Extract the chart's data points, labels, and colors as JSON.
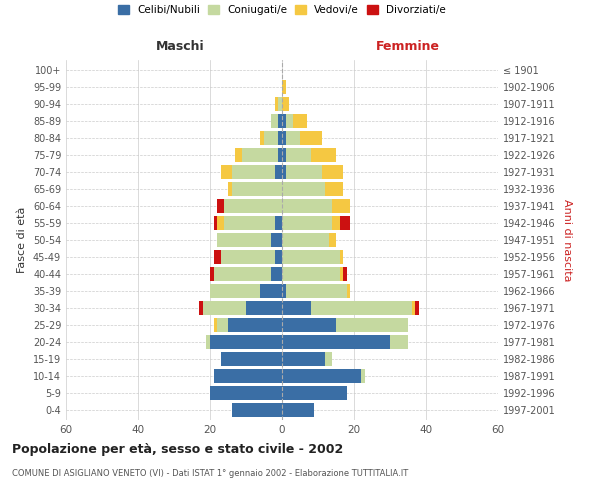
{
  "age_groups": [
    "0-4",
    "5-9",
    "10-14",
    "15-19",
    "20-24",
    "25-29",
    "30-34",
    "35-39",
    "40-44",
    "45-49",
    "50-54",
    "55-59",
    "60-64",
    "65-69",
    "70-74",
    "75-79",
    "80-84",
    "85-89",
    "90-94",
    "95-99",
    "100+"
  ],
  "birth_years": [
    "1997-2001",
    "1992-1996",
    "1987-1991",
    "1982-1986",
    "1977-1981",
    "1972-1976",
    "1967-1971",
    "1962-1966",
    "1957-1961",
    "1952-1956",
    "1947-1951",
    "1942-1946",
    "1937-1941",
    "1932-1936",
    "1927-1931",
    "1922-1926",
    "1917-1921",
    "1912-1916",
    "1907-1911",
    "1902-1906",
    "≤ 1901"
  ],
  "maschi_celibi": [
    14,
    20,
    19,
    17,
    20,
    15,
    10,
    6,
    3,
    2,
    3,
    2,
    0,
    0,
    2,
    1,
    1,
    1,
    0,
    0,
    0
  ],
  "maschi_coniugati": [
    0,
    0,
    0,
    0,
    1,
    3,
    12,
    14,
    16,
    15,
    15,
    14,
    16,
    14,
    12,
    10,
    4,
    2,
    1,
    0,
    0
  ],
  "maschi_vedovi": [
    0,
    0,
    0,
    0,
    0,
    1,
    0,
    0,
    0,
    0,
    0,
    2,
    0,
    1,
    3,
    2,
    1,
    0,
    1,
    0,
    0
  ],
  "maschi_divorziati": [
    0,
    0,
    0,
    0,
    0,
    0,
    1,
    0,
    1,
    2,
    0,
    1,
    2,
    0,
    0,
    0,
    0,
    0,
    0,
    0,
    0
  ],
  "femmine_celibi": [
    9,
    18,
    22,
    12,
    30,
    15,
    8,
    1,
    0,
    0,
    0,
    0,
    0,
    0,
    1,
    1,
    1,
    1,
    0,
    0,
    0
  ],
  "femmine_coniugati": [
    0,
    0,
    1,
    2,
    5,
    20,
    28,
    17,
    16,
    16,
    13,
    14,
    14,
    12,
    10,
    7,
    4,
    2,
    0,
    0,
    0
  ],
  "femmine_vedovi": [
    0,
    0,
    0,
    0,
    0,
    0,
    1,
    1,
    1,
    1,
    2,
    2,
    5,
    5,
    6,
    7,
    6,
    4,
    2,
    1,
    0
  ],
  "femmine_divorziati": [
    0,
    0,
    0,
    0,
    0,
    0,
    1,
    0,
    1,
    0,
    0,
    3,
    0,
    0,
    0,
    0,
    0,
    0,
    0,
    0,
    0
  ],
  "colors": {
    "celibi": "#3a6ea5",
    "coniugati": "#c5d9a0",
    "vedovi": "#f5c842",
    "divorziati": "#cc1111"
  },
  "title": "Popolazione per età, sesso e stato civile - 2002",
  "subtitle": "COMUNE DI ASIGLIANO VENETO (VI) - Dati ISTAT 1° gennaio 2002 - Elaborazione TUTTITALIA.IT",
  "ylabel_left": "Fasce di età",
  "ylabel_right": "Anni di nascita",
  "xlabel_maschi": "Maschi",
  "xlabel_femmine": "Femmine",
  "xlim": 60,
  "background_color": "#ffffff",
  "grid_color": "#cccccc"
}
